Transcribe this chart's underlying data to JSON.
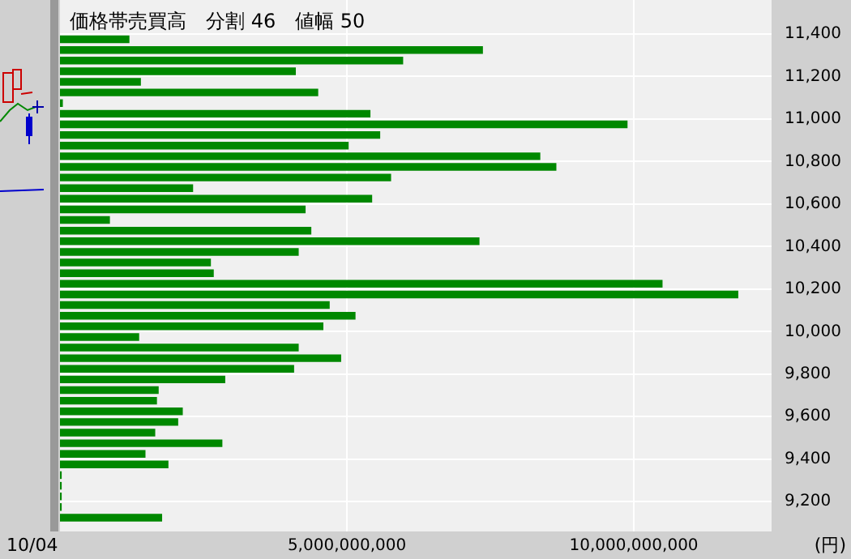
{
  "chart_data": {
    "type": "histogram",
    "orientation": "horizontal",
    "title": "価格帯売買高　分割 46　値幅 50",
    "xlabel": "(円)",
    "annotations": [
      "10/04"
    ],
    "bins": [
      9100,
      9150,
      9200,
      9250,
      9300,
      9350,
      9400,
      9450,
      9500,
      9550,
      9600,
      9650,
      9700,
      9750,
      9800,
      9850,
      9900,
      9950,
      10000,
      10050,
      10100,
      10150,
      10200,
      10250,
      10300,
      10350,
      10400,
      10450,
      10500,
      10550,
      10600,
      10650,
      10700,
      10750,
      10800,
      10850,
      10900,
      10950,
      11000,
      11050,
      11100,
      11150,
      11200,
      11250,
      11300,
      11350,
      11400
    ],
    "values": [
      1780000000,
      30000000,
      30000000,
      30000000,
      30000000,
      1890000000,
      1490000000,
      2830000000,
      1660000000,
      2060000000,
      2140000000,
      1690000000,
      1720000000,
      2880000000,
      4080000000,
      4900000000,
      4160000000,
      1380000000,
      4590000000,
      5150000000,
      4700000000,
      11820000000,
      10500000000,
      2680000000,
      2630000000,
      4160000000,
      7310000000,
      4380000000,
      870000000,
      4280000000,
      5440000000,
      2320000000,
      5770000000,
      8650000000,
      8370000000,
      5030000000,
      5580000000,
      9890000000,
      5410000000,
      50000000,
      4500000000,
      1410000000,
      4110000000,
      5980000000,
      7370000000,
      1210000000
    ],
    "color": "#008800",
    "xlim": [
      0,
      12400000000
    ],
    "xticks": [
      {
        "value": 5000000000,
        "label": "5,000,000,000"
      },
      {
        "value": 10000000000,
        "label": "10,000,000,000"
      }
    ],
    "ylim": [
      9060,
      11560
    ],
    "yticks": [
      {
        "value": 9200,
        "label": "9,200"
      },
      {
        "value": 9400,
        "label": "9,400"
      },
      {
        "value": 9600,
        "label": "9,600"
      },
      {
        "value": 9800,
        "label": "9,800"
      },
      {
        "value": 10000,
        "label": "10,000"
      },
      {
        "value": 10200,
        "label": "10,200"
      },
      {
        "value": 10400,
        "label": "10,400"
      },
      {
        "value": 10600,
        "label": "10,600"
      },
      {
        "value": 10800,
        "label": "10,800"
      },
      {
        "value": 11000,
        "label": "11,000"
      },
      {
        "value": 11200,
        "label": "11,200"
      },
      {
        "value": 11400,
        "label": "11,400"
      }
    ],
    "grid": true
  }
}
